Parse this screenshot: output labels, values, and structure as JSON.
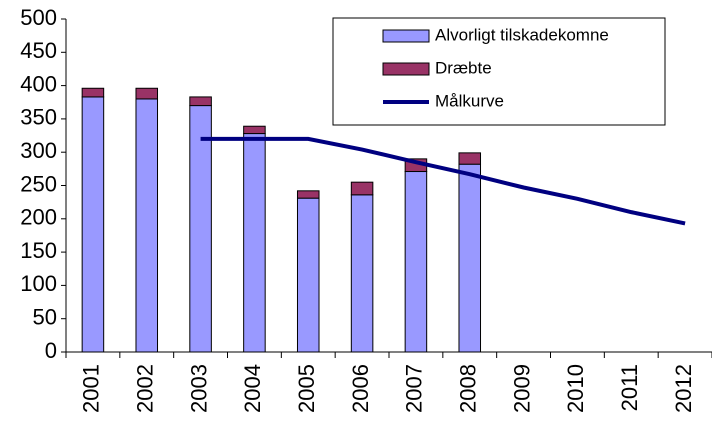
{
  "chart_data": {
    "type": "bar",
    "stacked": true,
    "categories": [
      "2001",
      "2002",
      "2003",
      "2004",
      "2005",
      "2006",
      "2007",
      "2008",
      "2009",
      "2010",
      "2011",
      "2012"
    ],
    "series": [
      {
        "name": "Alvorligt tilskadekomne",
        "type": "bar",
        "color": "#9999ff",
        "values": [
          383,
          380,
          370,
          328,
          231,
          236,
          271,
          282,
          null,
          null,
          null,
          null
        ]
      },
      {
        "name": "Dræbte",
        "type": "bar",
        "color": "#993366",
        "values": [
          13,
          16,
          13,
          11,
          11,
          19,
          19,
          17,
          null,
          null,
          null,
          null
        ]
      },
      {
        "name": "Målkurve",
        "type": "line",
        "color": "#000080",
        "values": [
          null,
          null,
          320,
          320,
          320,
          304,
          285,
          267,
          247,
          230,
          210,
          193
        ]
      }
    ],
    "ylim": [
      0,
      500
    ],
    "yticks": [
      0,
      50,
      100,
      150,
      200,
      250,
      300,
      350,
      400,
      450,
      500
    ],
    "grid": false
  }
}
